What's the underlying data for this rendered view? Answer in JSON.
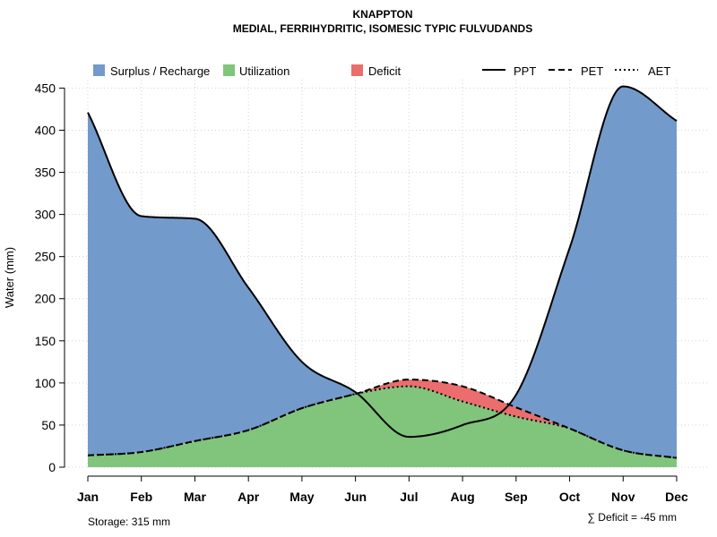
{
  "chart_data": {
    "type": "area",
    "title": "KNAPPTON",
    "subtitle": "MEDIAL, FERRIHYDRITIC, ISOMESIC TYPIC FULVUDANDS",
    "xlabel": "",
    "ylabel": "Water (mm)",
    "ylim": [
      0,
      460
    ],
    "yticks": [
      0,
      50,
      100,
      150,
      200,
      250,
      300,
      350,
      400,
      450
    ],
    "categories": [
      "Jan",
      "Feb",
      "Mar",
      "Apr",
      "May",
      "Jun",
      "Jul",
      "Aug",
      "Sep",
      "Oct",
      "Nov",
      "Dec"
    ],
    "grid": true,
    "legend": {
      "position": "top",
      "areas": [
        {
          "label": "Surplus / Recharge",
          "color": "#729ACB"
        },
        {
          "label": "Utilization",
          "color": "#80C57B"
        },
        {
          "label": "Deficit",
          "color": "#EB6D6E"
        }
      ],
      "lines": [
        {
          "label": "PPT",
          "style": "solid"
        },
        {
          "label": "PET",
          "style": "dashed"
        },
        {
          "label": "AET",
          "style": "dotted"
        }
      ]
    },
    "series": [
      {
        "name": "PPT",
        "values": [
          421,
          298,
          295,
          213,
          125,
          89,
          36,
          50,
          86,
          260,
          452,
          411
        ]
      },
      {
        "name": "PET",
        "values": [
          14,
          18,
          31,
          44,
          70,
          87,
          104,
          96,
          71,
          46,
          20,
          11
        ]
      },
      {
        "name": "AET",
        "values": [
          14,
          18,
          31,
          44,
          70,
          87,
          96,
          78,
          60,
          46,
          20,
          11
        ]
      }
    ],
    "annotations": {
      "storage": "Storage: 315 mm",
      "deficit": "∑ Deficit = -45 mm"
    }
  }
}
